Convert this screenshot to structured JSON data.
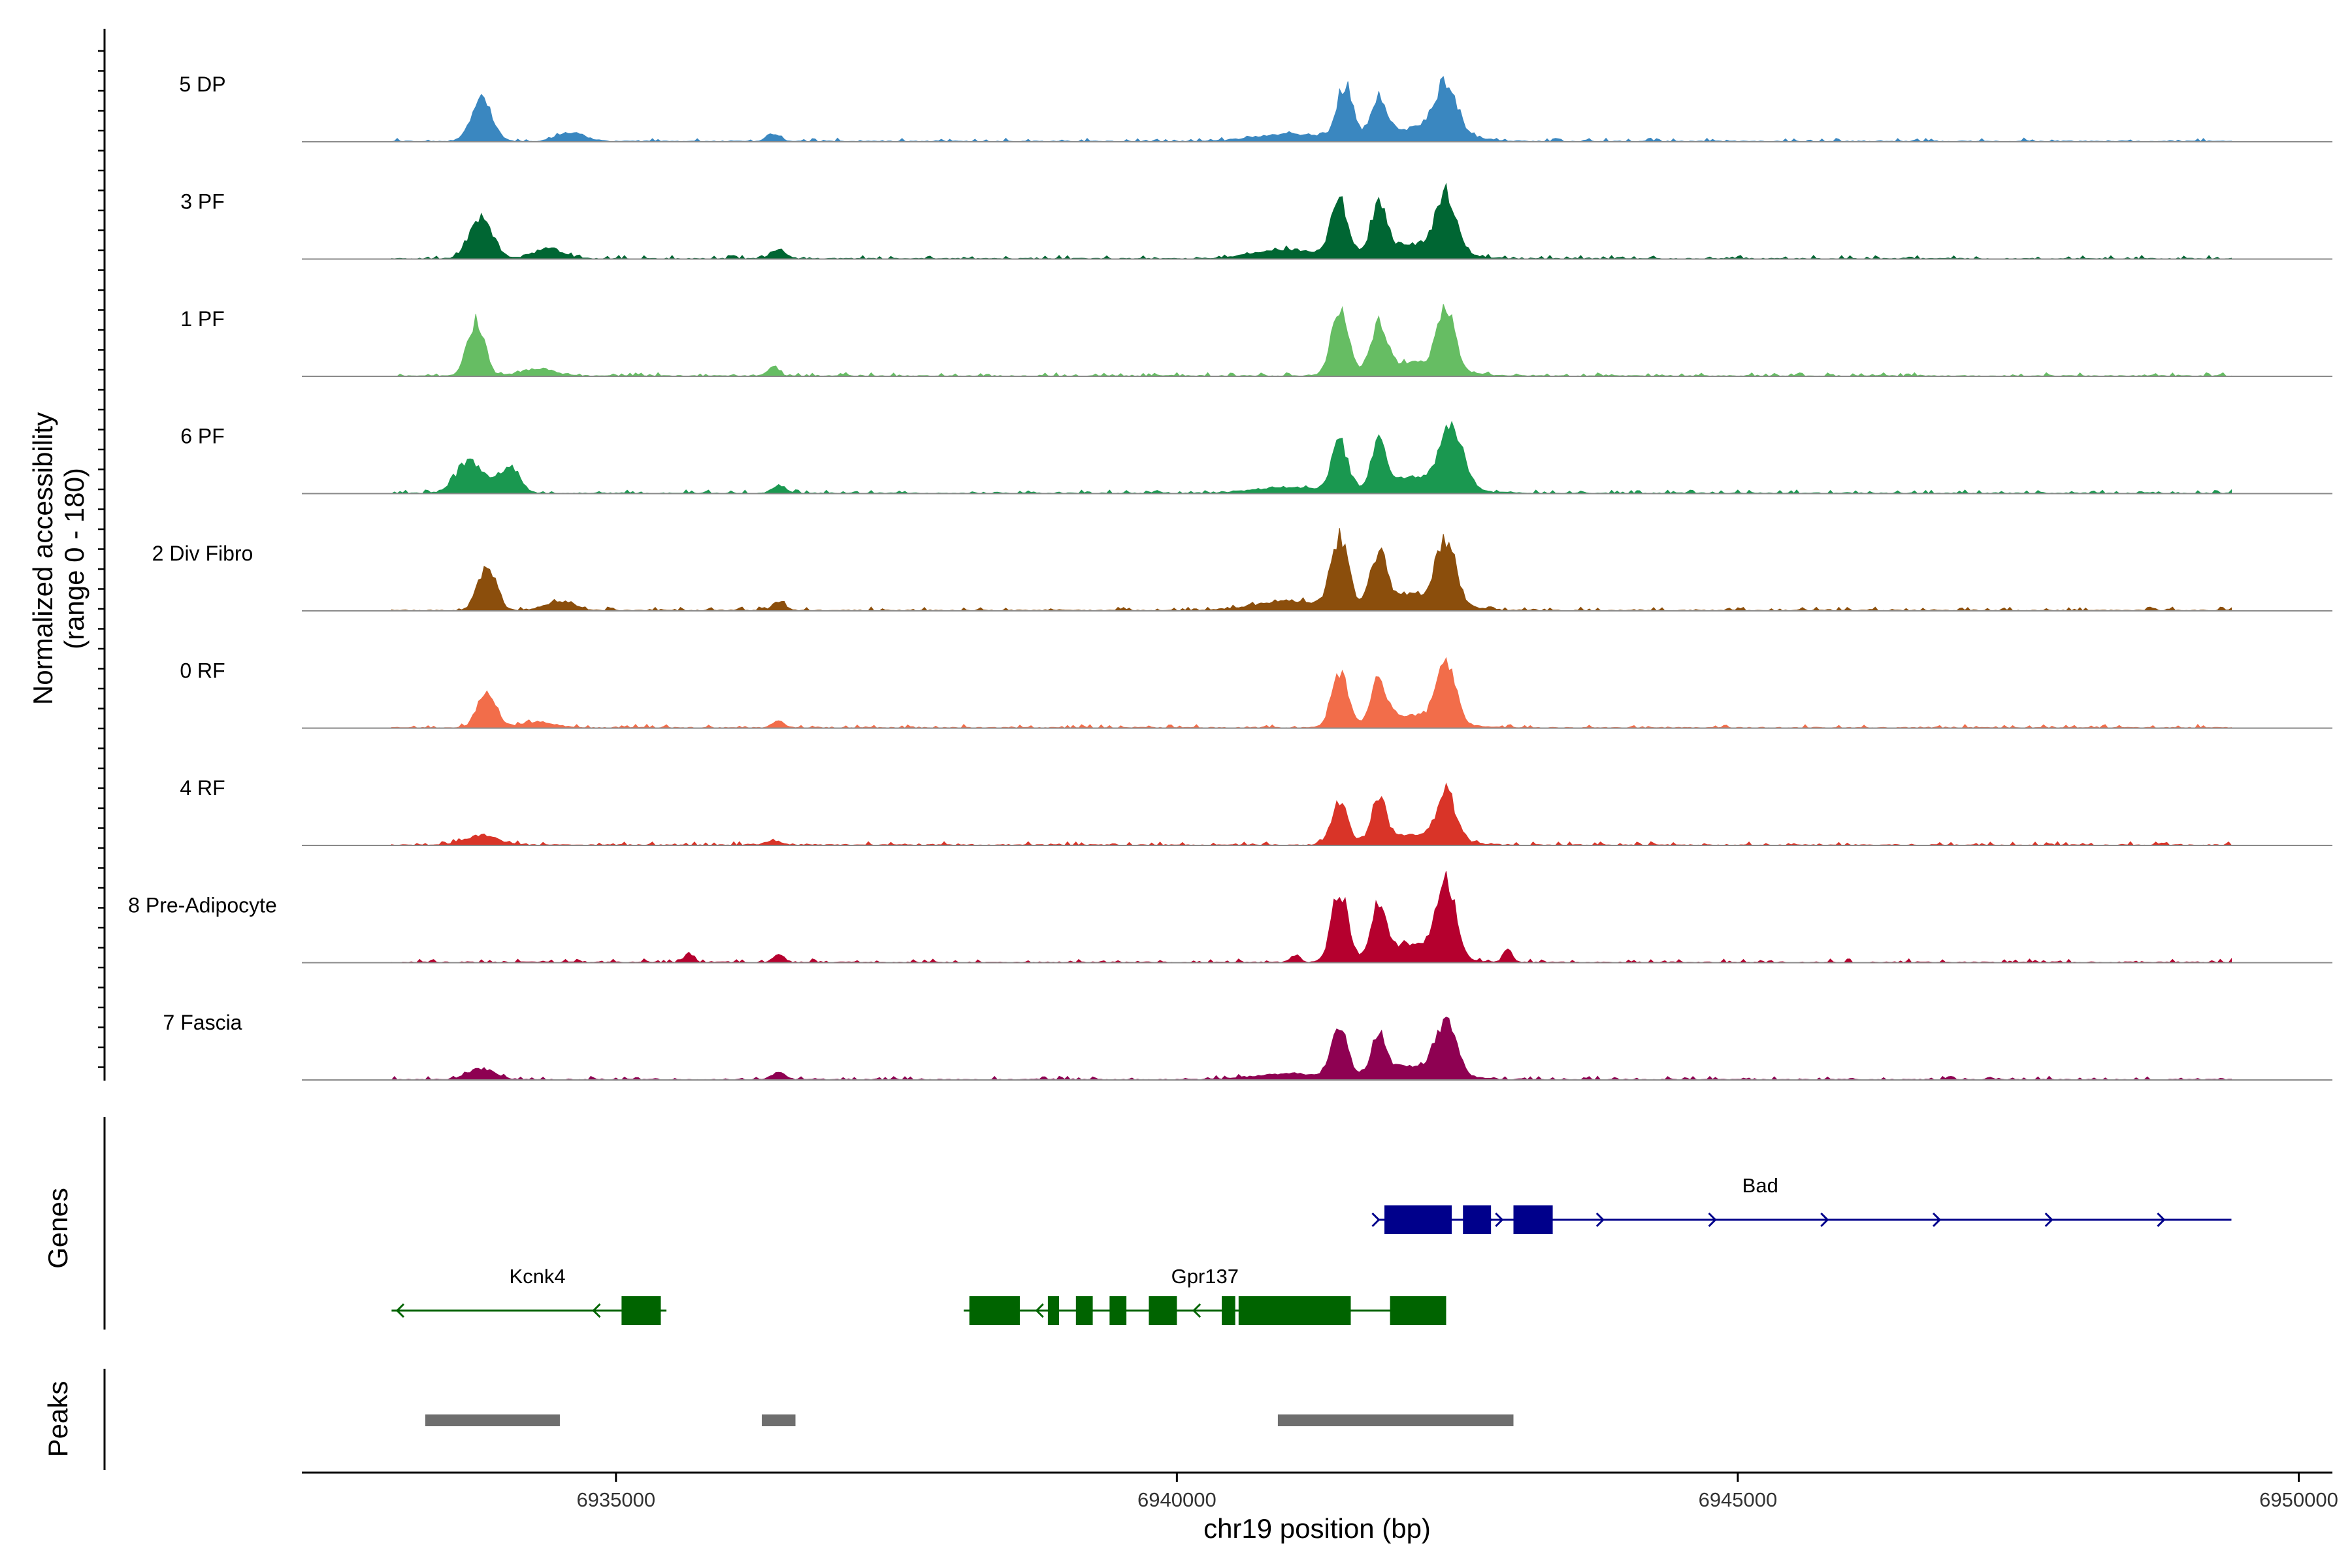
{
  "chart_data": {
    "type": "area",
    "title": "",
    "xlabel": "chr19 position (bp)",
    "ylabel": "Normalized accessibility",
    "ylabel_range": "(range 0 - 180)",
    "ylim": [
      0,
      180
    ],
    "xlim": [
      6932200,
      6950300
    ],
    "region_start": 6933000,
    "region_end": 6949400,
    "x_ticks": [
      6935000,
      6940000,
      6945000,
      6950000
    ],
    "x_tick_labels": [
      "6935000",
      "6940000",
      "6945000",
      "6950000"
    ],
    "panel_labels": {
      "genes": "Genes",
      "peaks": "Peaks"
    },
    "tracks": [
      {
        "name": "5 DP",
        "color": "#3A87C0",
        "scale": 0.98,
        "peaks": [
          [
            6933800,
            70,
            90
          ],
          [
            6934600,
            15,
            120
          ],
          [
            6936400,
            12,
            60
          ],
          [
            6941000,
            12,
            300
          ],
          [
            6941500,
            90,
            70
          ],
          [
            6941800,
            66,
            70
          ],
          [
            6942400,
            80,
            95
          ],
          [
            6942200,
            22,
            300
          ]
        ]
      },
      {
        "name": "3 PF",
        "color": "#006633",
        "scale": 0.95,
        "peaks": [
          [
            6933800,
            70,
            100
          ],
          [
            6934400,
            18,
            120
          ],
          [
            6936450,
            16,
            60
          ],
          [
            6941000,
            15,
            300
          ],
          [
            6941450,
            96,
            70
          ],
          [
            6941800,
            80,
            65
          ],
          [
            6942400,
            96,
            85
          ],
          [
            6942100,
            25,
            300
          ]
        ]
      },
      {
        "name": "1 PF",
        "color": "#66BD63",
        "scale": 0.96,
        "peaks": [
          [
            6933750,
            90,
            75
          ],
          [
            6934300,
            12,
            150
          ],
          [
            6936400,
            14,
            50
          ],
          [
            6941450,
            104,
            75
          ],
          [
            6941800,
            72,
            70
          ],
          [
            6942400,
            96,
            80
          ],
          [
            6942100,
            22,
            300
          ]
        ]
      },
      {
        "name": "6 PF",
        "color": "#1A9850",
        "scale": 0.97,
        "peaks": [
          [
            6933700,
            52,
            120
          ],
          [
            6934050,
            42,
            90
          ],
          [
            6936450,
            12,
            60
          ],
          [
            6941000,
            10,
            300
          ],
          [
            6941450,
            82,
            70
          ],
          [
            6941800,
            72,
            65
          ],
          [
            6942450,
            100,
            95
          ],
          [
            6942150,
            25,
            300
          ]
        ]
      },
      {
        "name": "2 Div Fibro",
        "color": "#8B4E0C",
        "scale": 1.0,
        "peaks": [
          [
            6933850,
            70,
            80
          ],
          [
            6934500,
            14,
            130
          ],
          [
            6936450,
            14,
            60
          ],
          [
            6941000,
            15,
            300
          ],
          [
            6941450,
            108,
            75
          ],
          [
            6941800,
            78,
            70
          ],
          [
            6942400,
            100,
            85
          ],
          [
            6942100,
            25,
            300
          ]
        ]
      },
      {
        "name": "0 RF",
        "color": "#F26D4A",
        "scale": 0.96,
        "peaks": [
          [
            6933850,
            60,
            80
          ],
          [
            6934300,
            10,
            150
          ],
          [
            6936450,
            12,
            50
          ],
          [
            6941450,
            90,
            70
          ],
          [
            6941800,
            68,
            65
          ],
          [
            6942400,
            100,
            80
          ],
          [
            6942100,
            20,
            300
          ]
        ]
      },
      {
        "name": "4 RF",
        "color": "#D93428",
        "scale": 0.96,
        "peaks": [
          [
            6933800,
            16,
            150
          ],
          [
            6936400,
            8,
            60
          ],
          [
            6941450,
            70,
            70
          ],
          [
            6941800,
            68,
            65
          ],
          [
            6942400,
            84,
            80
          ],
          [
            6942100,
            16,
            300
          ]
        ]
      },
      {
        "name": "8 Pre-Adipocyte",
        "color": "#B5002E",
        "scale": 1.0,
        "peaks": [
          [
            6935650,
            14,
            40
          ],
          [
            6936450,
            12,
            50
          ],
          [
            6941050,
            10,
            40
          ],
          [
            6941450,
            114,
            70
          ],
          [
            6941800,
            82,
            65
          ],
          [
            6942400,
            120,
            80
          ],
          [
            6942100,
            30,
            250
          ],
          [
            6942950,
            20,
            40
          ]
        ]
      },
      {
        "name": "7 Fascia",
        "color": "#8E0152",
        "scale": 0.96,
        "peaks": [
          [
            6933800,
            18,
            120
          ],
          [
            6936450,
            12,
            60
          ],
          [
            6941000,
            10,
            300
          ],
          [
            6941450,
            80,
            70
          ],
          [
            6941800,
            64,
            65
          ],
          [
            6942400,
            84,
            90
          ],
          [
            6942100,
            22,
            300
          ]
        ]
      }
    ],
    "genes": [
      {
        "name": "Bad",
        "strand": "+",
        "start": 6941800,
        "end": 6949400,
        "color": "#00008B",
        "exons": [
          [
            6941850,
            6942450
          ],
          [
            6942550,
            6942800
          ],
          [
            6943000,
            6943350
          ]
        ]
      },
      {
        "name": "Kcnk4",
        "strand": "-",
        "start": 6933000,
        "end": 6935450,
        "color": "#006400",
        "exons": [
          [
            6935050,
            6935400
          ]
        ]
      },
      {
        "name": "Gpr137",
        "strand": "-",
        "start": 6938100,
        "end": 6942400,
        "color": "#006400",
        "exons": [
          [
            6938150,
            6938600
          ],
          [
            6938850,
            6938950
          ],
          [
            6939100,
            6939250
          ],
          [
            6939400,
            6939550
          ],
          [
            6939750,
            6940000
          ],
          [
            6940400,
            6940520
          ],
          [
            6940550,
            6941550
          ],
          [
            6941900,
            6942400
          ]
        ]
      }
    ],
    "peaks": [
      [
        6933300,
        6934500
      ],
      [
        6936300,
        6936600
      ],
      [
        6940900,
        6943000
      ]
    ]
  }
}
